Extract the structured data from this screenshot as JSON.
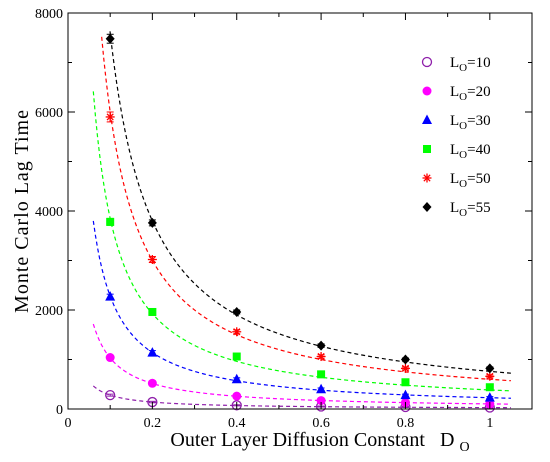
{
  "chart_data": {
    "type": "scatter",
    "title": "",
    "xlabel": "Outer Layer Diffusion Constant",
    "xlabel_symbol": "D",
    "xlabel_subscript": "O",
    "ylabel": "Monte Carlo Lag Time",
    "xlim": [
      0,
      1.1
    ],
    "ylim": [
      0,
      8000
    ],
    "x_ticks": [
      0,
      0.2,
      0.4,
      0.6,
      0.8,
      1
    ],
    "x_tick_labels": [
      "0",
      "0.2",
      "0.4",
      "0.6",
      "0.8",
      "1"
    ],
    "y_ticks": [
      0,
      2000,
      4000,
      6000,
      8000
    ],
    "y_tick_labels": [
      "0",
      "2000",
      "4000",
      "6000",
      "8000"
    ],
    "grid": false,
    "legend_position": "top-right",
    "fit_curve_range": [
      0.06,
      1.05
    ],
    "series": [
      {
        "name": "L",
        "name_subscript": "O",
        "name_suffix": "=10",
        "color": "#8e1eaa",
        "marker": "circle-open",
        "x": [
          0.1,
          0.2,
          0.4,
          0.6,
          0.8,
          1.0
        ],
        "y": [
          280,
          140,
          75,
          50,
          40,
          30
        ],
        "err": [
          20,
          15,
          10,
          10,
          10,
          10
        ],
        "fit_k": 28
      },
      {
        "name": "L",
        "name_subscript": "O",
        "name_suffix": "=20",
        "color": "#ff00ff",
        "marker": "circle-filled",
        "x": [
          0.1,
          0.2,
          0.4,
          0.6,
          0.8,
          1.0
        ],
        "y": [
          1040,
          520,
          260,
          170,
          130,
          100
        ],
        "err": [
          40,
          30,
          20,
          15,
          15,
          15
        ],
        "fit_k": 103
      },
      {
        "name": "L",
        "name_subscript": "O",
        "name_suffix": "=30",
        "color": "#0000ff",
        "marker": "triangle",
        "x": [
          0.1,
          0.2,
          0.4,
          0.6,
          0.8,
          1.0
        ],
        "y": [
          2270,
          1140,
          600,
          400,
          280,
          230
        ],
        "err": [
          50,
          40,
          30,
          25,
          20,
          20
        ],
        "fit_k": 228
      },
      {
        "name": "L",
        "name_subscript": "O",
        "name_suffix": "=40",
        "color": "#00ff00",
        "marker": "square",
        "x": [
          0.1,
          0.2,
          0.4,
          0.6,
          0.8,
          1.0
        ],
        "y": [
          3780,
          1960,
          1060,
          700,
          540,
          440
        ],
        "err": [
          70,
          50,
          40,
          30,
          30,
          25
        ],
        "fit_k": 385
      },
      {
        "name": "L",
        "name_subscript": "O",
        "name_suffix": "=50",
        "color": "#ff0000",
        "marker": "star",
        "x": [
          0.1,
          0.2,
          0.4,
          0.6,
          0.8,
          1.0
        ],
        "y": [
          5900,
          3020,
          1560,
          1060,
          820,
          660
        ],
        "err": [
          100,
          60,
          40,
          35,
          30,
          30
        ],
        "fit_k": 600
      },
      {
        "name": "L",
        "name_subscript": "O",
        "name_suffix": "=55",
        "color": "#000000",
        "marker": "diamond",
        "x": [
          0.1,
          0.2,
          0.4,
          0.6,
          0.8,
          1.0
        ],
        "y": [
          7480,
          3760,
          1960,
          1280,
          1000,
          820
        ],
        "err": [
          90,
          60,
          40,
          35,
          30,
          30
        ],
        "fit_k": 760
      }
    ]
  }
}
